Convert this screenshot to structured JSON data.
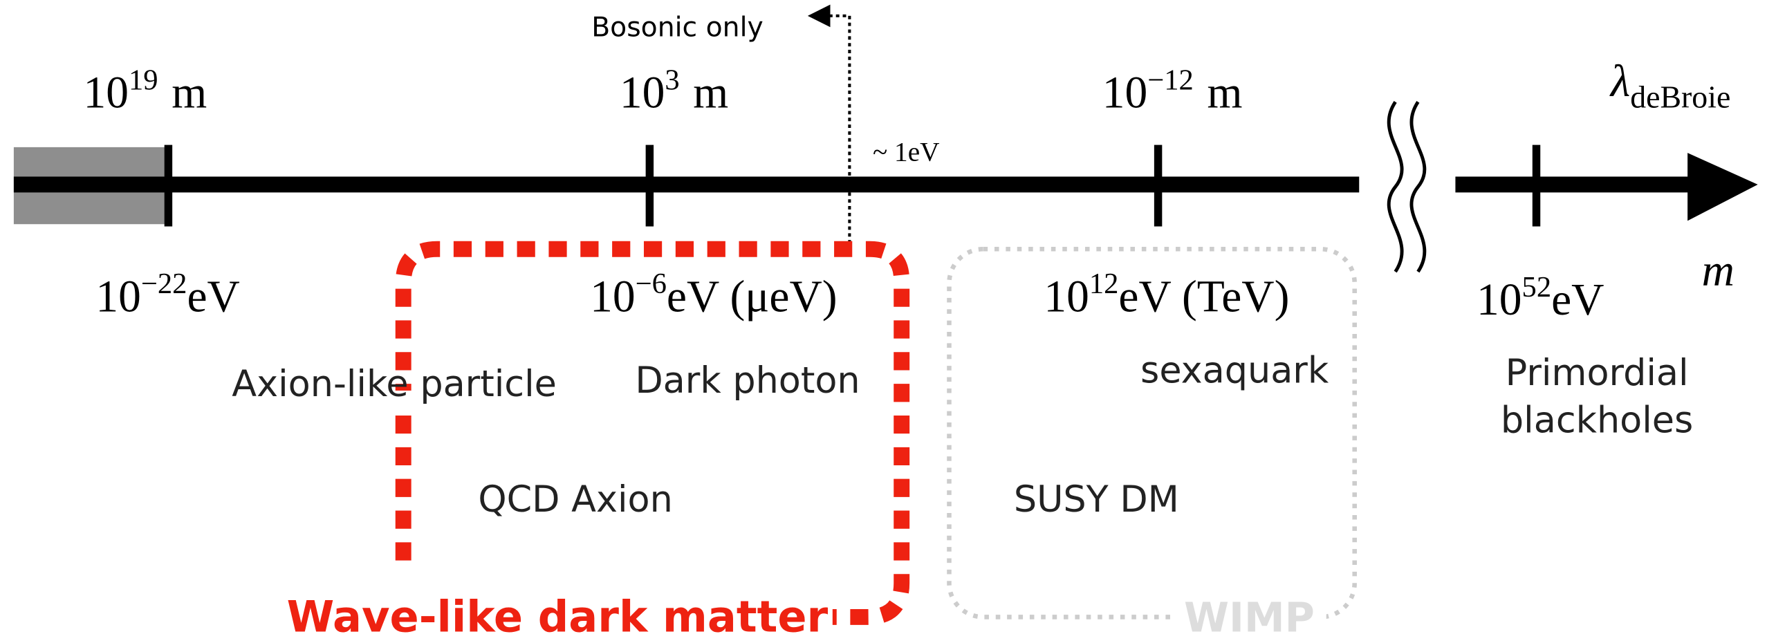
{
  "annotation": "Bosonic only",
  "threshold": "~ 1eV",
  "axis_labels": {
    "wavelength": {
      "symbol": "λ",
      "subscript": "deBroie"
    },
    "mass": "m"
  },
  "wavelength_labels": [
    {
      "base": "10",
      "exponent": "19",
      "unit": "m"
    },
    {
      "base": "10",
      "exponent": "3",
      "unit": "m"
    },
    {
      "base": "10",
      "exponent": "−12",
      "unit": "m"
    }
  ],
  "mass_labels": [
    {
      "base": "10",
      "exponent": "−22",
      "unit": "eV"
    },
    {
      "base": "10",
      "exponent": "−6",
      "unit": "eV (μeV)"
    },
    {
      "base": "10",
      "exponent": "12",
      "unit": "eV (TeV)"
    },
    {
      "base": "10",
      "exponent": "52",
      "unit": "eV"
    }
  ],
  "candidates": [
    {
      "lines": [
        "Axion-like particle"
      ]
    },
    {
      "lines": [
        "Dark photon"
      ]
    },
    {
      "lines": [
        "sexaquark"
      ]
    },
    {
      "lines": [
        "Primordial",
        "blackholes"
      ]
    },
    {
      "lines": [
        "QCD Axion"
      ]
    },
    {
      "lines": [
        "SUSY DM"
      ]
    }
  ],
  "regions": {
    "wave_like": "Wave-like dark matter",
    "wimp": "WIMP"
  }
}
